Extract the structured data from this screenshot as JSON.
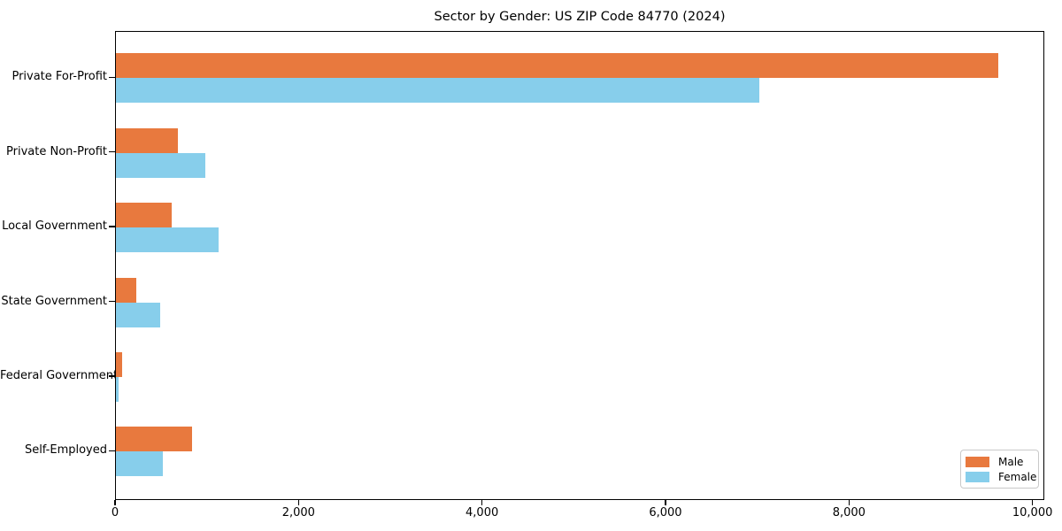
{
  "title": "Sector by Gender: US ZIP Code 84770 (2024)",
  "colors": {
    "male": "#e8793e",
    "female": "#87ceeb",
    "axis": "#000000",
    "legend_border": "#c9c9c9",
    "background": "#ffffff"
  },
  "legend": {
    "position": "lower right",
    "items": [
      {
        "label": "Male",
        "color": "#e8793e"
      },
      {
        "label": "Female",
        "color": "#87ceeb"
      }
    ]
  },
  "chart_data": {
    "type": "bar",
    "orientation": "horizontal",
    "title": "Sector by Gender: US ZIP Code 84770 (2024)",
    "xlabel": "",
    "ylabel": "",
    "categories": [
      "Private For-Profit",
      "Private Non-Profit",
      "Local Government",
      "State Government",
      "Federal Government",
      "Self-Employed"
    ],
    "series": [
      {
        "name": "Male",
        "color": "#e8793e",
        "values": [
          9620,
          675,
          605,
          225,
          70,
          825
        ]
      },
      {
        "name": "Female",
        "color": "#87ceeb",
        "values": [
          7010,
          970,
          1115,
          480,
          25,
          515
        ]
      }
    ],
    "xlim": [
      0,
      10100
    ],
    "xticks": [
      0,
      2000,
      4000,
      6000,
      8000,
      10000
    ],
    "xtick_labels": [
      "0",
      "2,000",
      "4,000",
      "6,000",
      "8,000",
      "10,000"
    ],
    "grid": false,
    "legend_position": "lower right"
  }
}
